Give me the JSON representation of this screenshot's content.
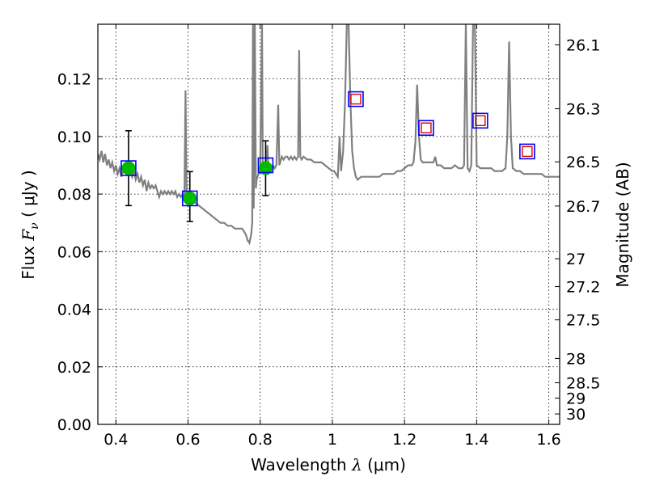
{
  "chart_data": {
    "type": "line",
    "xlabel_prefix": "Wavelength  ",
    "xlabel_symbol": "λ",
    "xlabel_suffix": " (μm)",
    "ylabel_prefix": "Flux  ",
    "ylabel_symbol": "F",
    "ylabel_subscript": "ν",
    "ylabel_suffix": "  ( μJy )",
    "y2label": "Magnitude (AB)",
    "xlim": [
      0.35,
      1.63
    ],
    "ylim": [
      0.0,
      0.139
    ],
    "grid": true,
    "x_ticks": [
      0.4,
      0.6,
      0.8,
      1.0,
      1.2,
      1.4,
      1.6
    ],
    "x_tick_labels": [
      "0.4",
      "0.6",
      "0.8",
      "1",
      "1.2",
      "1.4",
      "1.6"
    ],
    "y_ticks": [
      0.0,
      0.02,
      0.04,
      0.06,
      0.08,
      0.1,
      0.12
    ],
    "y_tick_labels": [
      "0.00",
      "0.02",
      "0.04",
      "0.06",
      "0.08",
      "0.10",
      "0.12"
    ],
    "y2_ticks": [
      {
        "label": "26.1",
        "mag": 26.1
      },
      {
        "label": "26.3",
        "mag": 26.3
      },
      {
        "label": "26.5",
        "mag": 26.5
      },
      {
        "label": "26.7",
        "mag": 26.7
      },
      {
        "label": "27",
        "mag": 27.0
      },
      {
        "label": "27.2",
        "mag": 27.2
      },
      {
        "label": "27.5",
        "mag": 27.5
      },
      {
        "label": "28",
        "mag": 28.0
      },
      {
        "label": "28.5",
        "mag": 28.5
      },
      {
        "label": "29",
        "mag": 29.0
      },
      {
        "label": "30",
        "mag": 30.0
      }
    ],
    "colors": {
      "spectrum": "#808080",
      "observed": "#00bb00",
      "model_box": "#0000ff",
      "predicted": "#dd0000",
      "errorbar": "#000000",
      "grid": "#000000"
    },
    "spectrum": [
      [
        0.35,
        0.094
      ],
      [
        0.355,
        0.092
      ],
      [
        0.36,
        0.095
      ],
      [
        0.365,
        0.091
      ],
      [
        0.37,
        0.094
      ],
      [
        0.375,
        0.09
      ],
      [
        0.38,
        0.092
      ],
      [
        0.385,
        0.089
      ],
      [
        0.39,
        0.091
      ],
      [
        0.395,
        0.088
      ],
      [
        0.4,
        0.09
      ],
      [
        0.405,
        0.087
      ],
      [
        0.41,
        0.089
      ],
      [
        0.415,
        0.086
      ],
      [
        0.42,
        0.088
      ],
      [
        0.425,
        0.088
      ],
      [
        0.43,
        0.089
      ],
      [
        0.435,
        0.087
      ],
      [
        0.44,
        0.089
      ],
      [
        0.445,
        0.086
      ],
      [
        0.45,
        0.088
      ],
      [
        0.455,
        0.085
      ],
      [
        0.46,
        0.087
      ],
      [
        0.465,
        0.084
      ],
      [
        0.47,
        0.086
      ],
      [
        0.475,
        0.083
      ],
      [
        0.48,
        0.085
      ],
      [
        0.485,
        0.081
      ],
      [
        0.49,
        0.084
      ],
      [
        0.495,
        0.082
      ],
      [
        0.5,
        0.083
      ],
      [
        0.505,
        0.082
      ],
      [
        0.51,
        0.083
      ],
      [
        0.515,
        0.081
      ],
      [
        0.52,
        0.079
      ],
      [
        0.525,
        0.081
      ],
      [
        0.53,
        0.08
      ],
      [
        0.535,
        0.081
      ],
      [
        0.54,
        0.08
      ],
      [
        0.545,
        0.081
      ],
      [
        0.55,
        0.08
      ],
      [
        0.555,
        0.081
      ],
      [
        0.56,
        0.08
      ],
      [
        0.565,
        0.081
      ],
      [
        0.57,
        0.079
      ],
      [
        0.575,
        0.08
      ],
      [
        0.58,
        0.079
      ],
      [
        0.585,
        0.08
      ],
      [
        0.588,
        0.078
      ],
      [
        0.59,
        0.08
      ],
      [
        0.593,
        0.116
      ],
      [
        0.596,
        0.08
      ],
      [
        0.6,
        0.078
      ],
      [
        0.605,
        0.079
      ],
      [
        0.61,
        0.078
      ],
      [
        0.62,
        0.077
      ],
      [
        0.63,
        0.076
      ],
      [
        0.64,
        0.075
      ],
      [
        0.65,
        0.074
      ],
      [
        0.66,
        0.073
      ],
      [
        0.67,
        0.072
      ],
      [
        0.68,
        0.071
      ],
      [
        0.69,
        0.07
      ],
      [
        0.7,
        0.07
      ],
      [
        0.71,
        0.069
      ],
      [
        0.72,
        0.069
      ],
      [
        0.73,
        0.068
      ],
      [
        0.74,
        0.068
      ],
      [
        0.75,
        0.068
      ],
      [
        0.755,
        0.067
      ],
      [
        0.76,
        0.066
      ],
      [
        0.765,
        0.064
      ],
      [
        0.77,
        0.063
      ],
      [
        0.775,
        0.066
      ],
      [
        0.778,
        0.07
      ],
      [
        0.78,
        0.139
      ],
      [
        0.782,
        0.075
      ],
      [
        0.785,
        0.139
      ],
      [
        0.788,
        0.082
      ],
      [
        0.79,
        0.085
      ],
      [
        0.795,
        0.087
      ],
      [
        0.8,
        0.088
      ],
      [
        0.805,
        0.139
      ],
      [
        0.807,
        0.088
      ],
      [
        0.81,
        0.089
      ],
      [
        0.815,
        0.09
      ],
      [
        0.82,
        0.097
      ],
      [
        0.823,
        0.088
      ],
      [
        0.83,
        0.089
      ],
      [
        0.835,
        0.09
      ],
      [
        0.84,
        0.089
      ],
      [
        0.845,
        0.09
      ],
      [
        0.85,
        0.111
      ],
      [
        0.853,
        0.09
      ],
      [
        0.86,
        0.093
      ],
      [
        0.865,
        0.092
      ],
      [
        0.87,
        0.093
      ],
      [
        0.875,
        0.093
      ],
      [
        0.88,
        0.092
      ],
      [
        0.885,
        0.093
      ],
      [
        0.89,
        0.092
      ],
      [
        0.895,
        0.093
      ],
      [
        0.9,
        0.092
      ],
      [
        0.905,
        0.093
      ],
      [
        0.908,
        0.13
      ],
      [
        0.911,
        0.093
      ],
      [
        0.915,
        0.092
      ],
      [
        0.92,
        0.093
      ],
      [
        0.93,
        0.092
      ],
      [
        0.94,
        0.092
      ],
      [
        0.95,
        0.091
      ],
      [
        0.96,
        0.091
      ],
      [
        0.97,
        0.091
      ],
      [
        0.98,
        0.09
      ],
      [
        0.99,
        0.089
      ],
      [
        1.0,
        0.088
      ],
      [
        1.005,
        0.088
      ],
      [
        1.01,
        0.087
      ],
      [
        1.015,
        0.086
      ],
      [
        1.02,
        0.1
      ],
      [
        1.024,
        0.088
      ],
      [
        1.03,
        0.095
      ],
      [
        1.035,
        0.112
      ],
      [
        1.04,
        0.139
      ],
      [
        1.045,
        0.139
      ],
      [
        1.05,
        0.112
      ],
      [
        1.055,
        0.095
      ],
      [
        1.06,
        0.089
      ],
      [
        1.065,
        0.086
      ],
      [
        1.07,
        0.085
      ],
      [
        1.08,
        0.086
      ],
      [
        1.09,
        0.086
      ],
      [
        1.1,
        0.086
      ],
      [
        1.11,
        0.086
      ],
      [
        1.12,
        0.086
      ],
      [
        1.13,
        0.086
      ],
      [
        1.14,
        0.087
      ],
      [
        1.15,
        0.087
      ],
      [
        1.16,
        0.087
      ],
      [
        1.17,
        0.087
      ],
      [
        1.18,
        0.088
      ],
      [
        1.19,
        0.088
      ],
      [
        1.2,
        0.089
      ],
      [
        1.21,
        0.09
      ],
      [
        1.22,
        0.09
      ],
      [
        1.225,
        0.091
      ],
      [
        1.23,
        0.098
      ],
      [
        1.235,
        0.118
      ],
      [
        1.24,
        0.1
      ],
      [
        1.245,
        0.092
      ],
      [
        1.25,
        0.091
      ],
      [
        1.26,
        0.091
      ],
      [
        1.27,
        0.091
      ],
      [
        1.28,
        0.091
      ],
      [
        1.285,
        0.093
      ],
      [
        1.29,
        0.09
      ],
      [
        1.3,
        0.09
      ],
      [
        1.31,
        0.089
      ],
      [
        1.32,
        0.089
      ],
      [
        1.33,
        0.089
      ],
      [
        1.34,
        0.09
      ],
      [
        1.35,
        0.089
      ],
      [
        1.36,
        0.089
      ],
      [
        1.365,
        0.09
      ],
      [
        1.37,
        0.139
      ],
      [
        1.375,
        0.089
      ],
      [
        1.38,
        0.088
      ],
      [
        1.385,
        0.09
      ],
      [
        1.39,
        0.139
      ],
      [
        1.395,
        0.139
      ],
      [
        1.4,
        0.09
      ],
      [
        1.41,
        0.089
      ],
      [
        1.42,
        0.089
      ],
      [
        1.43,
        0.089
      ],
      [
        1.44,
        0.089
      ],
      [
        1.45,
        0.088
      ],
      [
        1.46,
        0.088
      ],
      [
        1.47,
        0.088
      ],
      [
        1.48,
        0.089
      ],
      [
        1.485,
        0.1
      ],
      [
        1.49,
        0.133
      ],
      [
        1.495,
        0.1
      ],
      [
        1.5,
        0.089
      ],
      [
        1.51,
        0.088
      ],
      [
        1.52,
        0.088
      ],
      [
        1.53,
        0.087
      ],
      [
        1.54,
        0.087
      ],
      [
        1.55,
        0.087
      ],
      [
        1.56,
        0.087
      ],
      [
        1.57,
        0.087
      ],
      [
        1.58,
        0.087
      ],
      [
        1.59,
        0.086
      ],
      [
        1.6,
        0.086
      ],
      [
        1.61,
        0.086
      ],
      [
        1.62,
        0.086
      ],
      [
        1.63,
        0.086
      ]
    ],
    "observed_points": [
      {
        "x": 0.435,
        "y": 0.089,
        "yerr_low": 0.076,
        "yerr_high": 0.102
      },
      {
        "x": 0.605,
        "y": 0.0785,
        "yerr_low": 0.0705,
        "yerr_high": 0.0878
      },
      {
        "x": 0.815,
        "y": 0.089,
        "yerr_low": 0.0795,
        "yerr_high": 0.0985
      }
    ],
    "model_boxes": [
      {
        "x": 0.435,
        "y": 0.089
      },
      {
        "x": 0.605,
        "y": 0.0785
      },
      {
        "x": 0.815,
        "y": 0.09
      },
      {
        "x": 1.065,
        "y": 0.113
      },
      {
        "x": 1.26,
        "y": 0.103
      },
      {
        "x": 1.41,
        "y": 0.1055
      },
      {
        "x": 1.54,
        "y": 0.0948
      }
    ],
    "predicted_points": [
      {
        "x": 1.065,
        "y": 0.113
      },
      {
        "x": 1.26,
        "y": 0.103
      },
      {
        "x": 1.41,
        "y": 0.1055
      },
      {
        "x": 1.54,
        "y": 0.0948
      }
    ]
  }
}
